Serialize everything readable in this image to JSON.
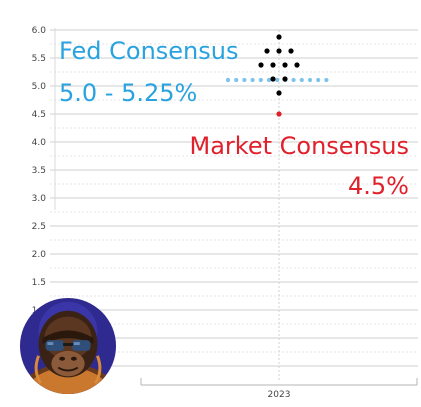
{
  "chart_data": {
    "type": "scatter",
    "title": "",
    "xlabel": "",
    "ylabel": "",
    "categories": [
      "2023"
    ],
    "ylim": [
      0,
      6.0
    ],
    "yticks": [
      6.0,
      5.5,
      5.0,
      4.5,
      4.0,
      3.5,
      3.0,
      2.5,
      2.0,
      1.5,
      1.0
    ],
    "grid": true,
    "series": [
      {
        "role": "fed-dot-plot",
        "color": "#000000",
        "points": [
          {
            "x": "2023",
            "y": 5.875,
            "count": 1
          },
          {
            "x": "2023",
            "y": 5.625,
            "count": 3
          },
          {
            "x": "2023",
            "y": 5.375,
            "count": 4
          },
          {
            "x": "2023",
            "y": 5.125,
            "count": 2
          },
          {
            "x": "2023",
            "y": 4.875,
            "count": 1
          }
        ]
      },
      {
        "role": "market-consensus",
        "color": "#e0202a",
        "points": [
          {
            "x": "2023",
            "y": 4.5,
            "count": 1
          }
        ]
      }
    ],
    "reference_line": {
      "y": 5.125,
      "color": "#7cc4ec",
      "style": "dotted"
    }
  },
  "annotations": {
    "fed_title": "Fed Consensus",
    "fed_range": "5.0 - 5.25%",
    "market_title": "Market Consensus",
    "market_value": "4.5%",
    "fed_color": "#29a3e0",
    "market_color": "#e0202a"
  },
  "avatar_icon": "gorilla-with-sunglasses-avatar"
}
